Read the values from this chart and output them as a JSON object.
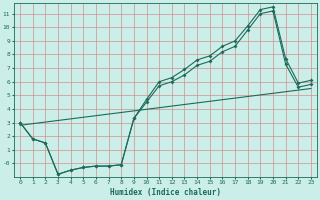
{
  "xlabel": "Humidex (Indice chaleur)",
  "bg_color": "#cceee8",
  "grid_color": "#d09090",
  "line_color": "#1a6b5a",
  "xlim": [
    -0.5,
    23.5
  ],
  "ylim": [
    -1.0,
    11.8
  ],
  "ytick_vals": [
    0,
    1,
    2,
    3,
    4,
    5,
    6,
    7,
    8,
    9,
    10,
    11
  ],
  "ytick_labels": [
    "-0",
    "1",
    "2",
    "3",
    "4",
    "5",
    "6",
    "7",
    "8",
    "9",
    "10",
    "11"
  ],
  "xtick_vals": [
    0,
    1,
    2,
    3,
    4,
    5,
    6,
    7,
    8,
    9,
    10,
    11,
    12,
    13,
    14,
    15,
    16,
    17,
    18,
    19,
    20,
    21,
    22,
    23
  ],
  "line1_x": [
    0,
    1,
    2,
    3,
    4,
    5,
    6,
    7,
    8,
    9,
    10,
    11,
    12,
    13,
    14,
    15,
    16,
    17,
    18,
    19,
    20,
    21,
    22,
    23
  ],
  "line1_y": [
    3.0,
    1.8,
    1.5,
    -0.8,
    -0.5,
    -0.3,
    -0.2,
    -0.2,
    -0.1,
    3.3,
    4.5,
    5.7,
    6.0,
    6.5,
    7.2,
    7.5,
    8.2,
    8.6,
    9.8,
    11.0,
    11.2,
    7.3,
    5.6,
    5.8
  ],
  "line2_x": [
    0,
    1,
    2,
    3,
    4,
    5,
    6,
    7,
    8,
    9,
    10,
    11,
    12,
    13,
    14,
    15,
    16,
    17,
    18,
    19,
    20,
    21,
    22,
    23
  ],
  "line2_y": [
    3.0,
    1.8,
    1.5,
    -0.8,
    -0.5,
    -0.3,
    -0.2,
    -0.2,
    -0.1,
    3.3,
    4.7,
    6.0,
    6.3,
    6.9,
    7.6,
    7.9,
    8.6,
    9.0,
    10.1,
    11.3,
    11.5,
    7.7,
    5.9,
    6.1
  ],
  "line3_x": [
    0,
    23
  ],
  "line3_y": [
    2.8,
    5.5
  ],
  "marker": "D",
  "markersize": 2.0,
  "linewidth": 0.8,
  "xlabel_fontsize": 5.5,
  "tick_fontsize": 4.5
}
